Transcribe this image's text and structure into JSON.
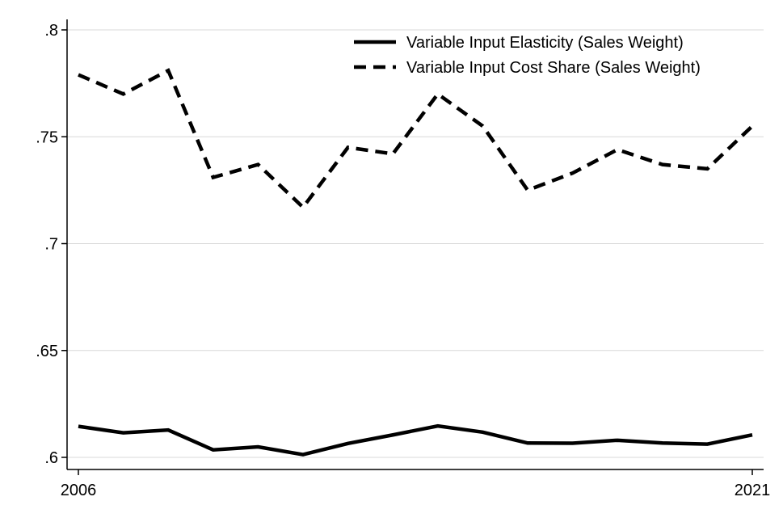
{
  "chart_data": {
    "type": "line",
    "title": "",
    "xlabel": "",
    "ylabel": "",
    "x": [
      2006,
      2007,
      2008,
      2009,
      2010,
      2011,
      2012,
      2013,
      2014,
      2015,
      2016,
      2017,
      2018,
      2019,
      2020,
      2021
    ],
    "xlim": [
      2006,
      2021
    ],
    "ylim": [
      0.6,
      0.8
    ],
    "x_tick_values": [
      2006,
      2021
    ],
    "x_tick_labels": [
      "2006",
      "2021"
    ],
    "y_tick_values": [
      0.6,
      0.65,
      0.7,
      0.75,
      0.8
    ],
    "y_tick_labels": [
      ".6",
      ".65",
      ".7",
      ".75",
      ".8"
    ],
    "grid": true,
    "legend_position": "top-right",
    "series": [
      {
        "name": "Variable Input Elasticity (Sales Weight)",
        "style": "solid",
        "color": "#000000",
        "values": [
          0.6145,
          0.6115,
          0.6128,
          0.6035,
          0.6049,
          0.6013,
          0.6065,
          0.6105,
          0.6147,
          0.6118,
          0.6067,
          0.6066,
          0.608,
          0.6067,
          0.6062,
          0.6105
        ]
      },
      {
        "name": "Variable Input Cost Share (Sales Weight)",
        "style": "dashed",
        "color": "#000000",
        "values": [
          0.779,
          0.77,
          0.781,
          0.731,
          0.737,
          0.717,
          0.745,
          0.742,
          0.77,
          0.755,
          0.725,
          0.733,
          0.744,
          0.737,
          0.735,
          0.755
        ]
      }
    ]
  }
}
